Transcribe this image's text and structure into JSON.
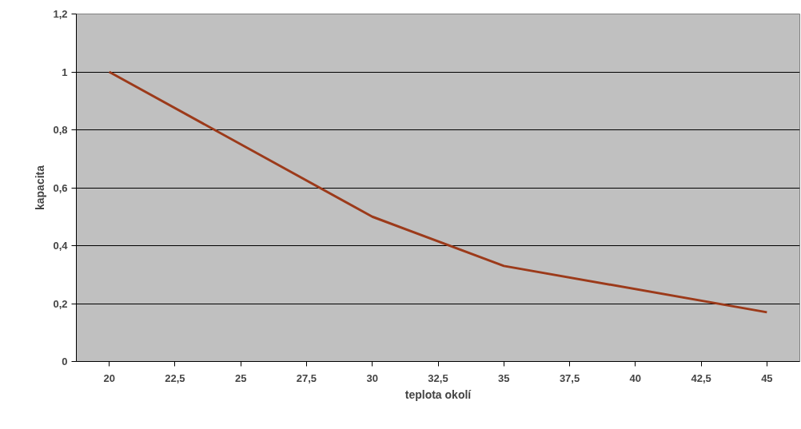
{
  "chart_data": {
    "type": "line",
    "xlabel": "teplota okolí",
    "ylabel": "kapacita",
    "x": [
      20,
      30,
      35,
      45
    ],
    "series": [
      {
        "color": "#9c3a1a",
        "values": [
          1,
          0.5,
          0.33,
          0.17
        ]
      }
    ],
    "xlim": [
      18.75,
      46.25
    ],
    "xticks": [
      20,
      {
        "value": 22.5,
        "label": "22,5"
      },
      25,
      {
        "value": 27.5,
        "label": "27,5"
      },
      30,
      {
        "value": 32.5,
        "label": "32,5"
      },
      35,
      {
        "value": 37.5,
        "label": "37,5"
      },
      40,
      {
        "value": 42.5,
        "label": "42,5"
      },
      45
    ],
    "ylim": [
      0,
      1.2
    ],
    "yticks": [
      0,
      {
        "value": 0.2,
        "label": "0,2"
      },
      {
        "value": 0.4,
        "label": "0,4"
      },
      {
        "value": 0.6,
        "label": "0,6"
      },
      {
        "value": 0.8,
        "label": "0,8"
      },
      1,
      {
        "value": 1.2,
        "label": "1,2"
      }
    ],
    "grid": "y",
    "marker": "none",
    "line_style": "solid"
  }
}
